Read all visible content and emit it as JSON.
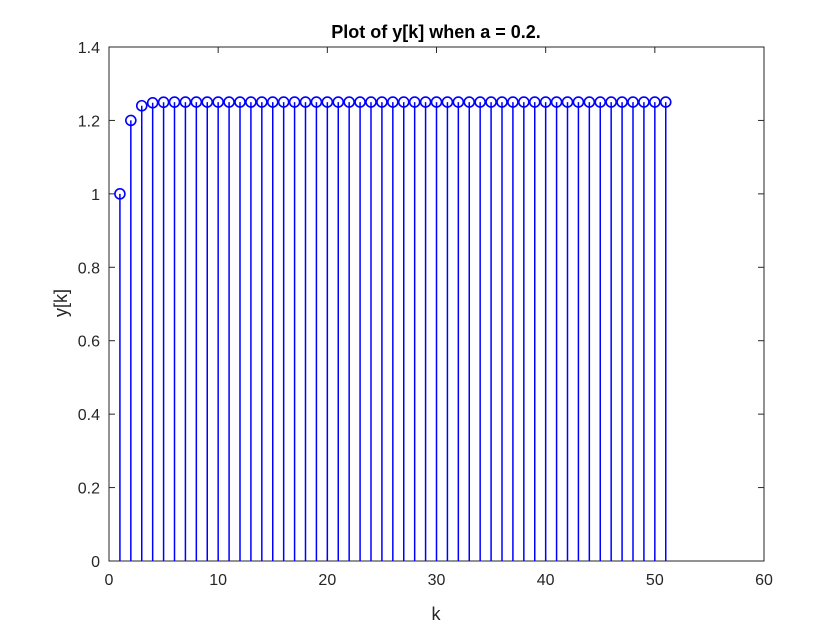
{
  "chart_data": {
    "type": "stem",
    "title": "Plot of y[k] when a = 0.2.",
    "xlabel": "k",
    "ylabel": "y[k]",
    "xlim": [
      0,
      60
    ],
    "ylim": [
      0,
      1.4
    ],
    "xticks": [
      "0",
      "10",
      "20",
      "30",
      "40",
      "50",
      "60"
    ],
    "yticks": [
      "0",
      "0.2",
      "0.4",
      "0.6",
      "0.8",
      "1",
      "1.2",
      "1.4"
    ],
    "grid": false,
    "box": true,
    "series": [
      {
        "color": "#0000FF",
        "marker": "circle",
        "x": [
          1,
          2,
          3,
          4,
          5,
          6,
          7,
          8,
          9,
          10,
          11,
          12,
          13,
          14,
          15,
          16,
          17,
          18,
          19,
          20,
          21,
          22,
          23,
          24,
          25,
          26,
          27,
          28,
          29,
          30,
          31,
          32,
          33,
          34,
          35,
          36,
          37,
          38,
          39,
          40,
          41,
          42,
          43,
          44,
          45,
          46,
          47,
          48,
          49,
          50,
          51
        ],
        "y": [
          1,
          1.2,
          1.24,
          1.248,
          1.2496,
          1.2499,
          1.25,
          1.25,
          1.25,
          1.25,
          1.25,
          1.25,
          1.25,
          1.25,
          1.25,
          1.25,
          1.25,
          1.25,
          1.25,
          1.25,
          1.25,
          1.25,
          1.25,
          1.25,
          1.25,
          1.25,
          1.25,
          1.25,
          1.25,
          1.25,
          1.25,
          1.25,
          1.25,
          1.25,
          1.25,
          1.25,
          1.25,
          1.25,
          1.25,
          1.25,
          1.25,
          1.25,
          1.25,
          1.25,
          1.25,
          1.25,
          1.25,
          1.25,
          1.25,
          1.25,
          1.25
        ]
      }
    ]
  }
}
